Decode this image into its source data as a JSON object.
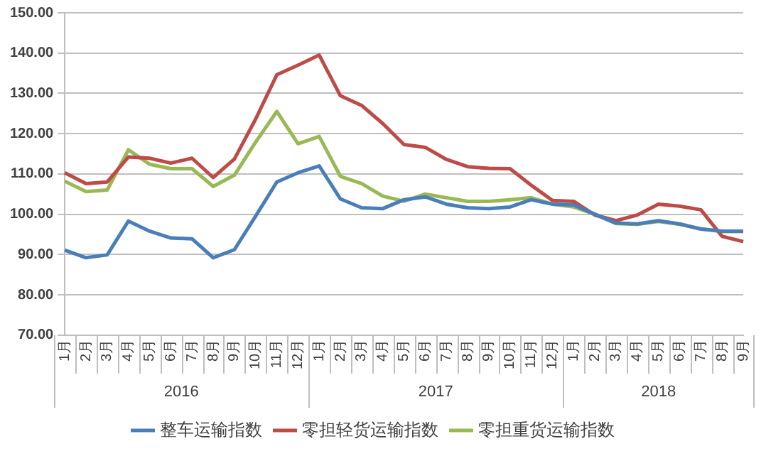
{
  "chart_data": {
    "type": "line",
    "categories": [
      "1月",
      "2月",
      "3月",
      "4月",
      "5月",
      "6月",
      "7月",
      "8月",
      "9月",
      "10月",
      "11月",
      "12月",
      "1月",
      "2月",
      "3月",
      "4月",
      "5月",
      "6月",
      "7月",
      "8月",
      "9月",
      "10月",
      "11月",
      "12月",
      "1月",
      "2月",
      "3月",
      "4月",
      "5月",
      "6月",
      "7月",
      "8月",
      "9月"
    ],
    "annotations": [
      "2016",
      "2017",
      "2018"
    ],
    "series": [
      {
        "name": "整车运输指数",
        "color": "#4a7ebb",
        "values": [
          91.1,
          89.2,
          89.9,
          98.3,
          95.8,
          94.1,
          93.9,
          89.2,
          91.2,
          99.5,
          108,
          110.3,
          112,
          103.8,
          101.6,
          101.4,
          103.6,
          104.3,
          102.5,
          101.6,
          101.4,
          101.8,
          103.6,
          102.5,
          102.3,
          100,
          97.8,
          97.6,
          98.4,
          97.6,
          96.3,
          95.8,
          95.8
        ]
      },
      {
        "name": "零担轻货运输指数",
        "color": "#be4b48",
        "values": [
          110.3,
          107.6,
          108,
          114.2,
          113.9,
          112.7,
          113.9,
          109.1,
          113.7,
          123.6,
          134.6,
          137,
          139.5,
          129.4,
          127,
          122.5,
          117.3,
          116.6,
          113.6,
          111.8,
          111.4,
          111.3,
          107.2,
          103.4,
          103.2,
          99.8,
          98.4,
          99.8,
          102.5,
          102,
          101.1,
          94.5,
          93.2
        ]
      },
      {
        "name": "零担重货运输指数",
        "color": "#98b954",
        "values": [
          108.2,
          105.6,
          106,
          116,
          112.4,
          111.3,
          111.3,
          106.9,
          109.7,
          117.9,
          125.5,
          117.5,
          119.3,
          109.4,
          107.6,
          104.5,
          103.2,
          105,
          104.1,
          103.2,
          103.2,
          103.6,
          104.1,
          102.5,
          101.8,
          100,
          97.7,
          97.5,
          98.2,
          97.5,
          96.4,
          95.7,
          95.7
        ]
      }
    ],
    "ylim": [
      70,
      150
    ],
    "yticks": [
      {
        "value": 70,
        "label": "70.00"
      },
      {
        "value": 80,
        "label": "80.00"
      },
      {
        "value": 90,
        "label": "90.00"
      },
      {
        "value": 100,
        "label": "100.00"
      },
      {
        "value": 110,
        "label": "110.00"
      },
      {
        "value": 120,
        "label": "120.00"
      },
      {
        "value": 130,
        "label": "130.00"
      },
      {
        "value": 140,
        "label": "140.00"
      },
      {
        "value": 150,
        "label": "150.00"
      }
    ],
    "grid": "y",
    "legend": "bottom",
    "marker": "none",
    "line_style": "solid"
  }
}
